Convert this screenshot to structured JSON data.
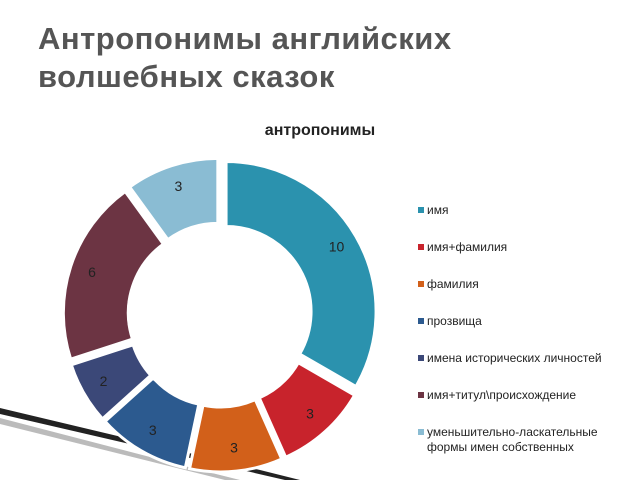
{
  "slide": {
    "title": "Антропонимы английских волшебных сказок"
  },
  "chart_data": {
    "type": "donut",
    "title": "антропонимы",
    "categories": [
      "имя",
      "имя+фамилия",
      "фамилия",
      "прозвища",
      "имена исторических личностей",
      "имя+титул\\происхождение",
      "уменьшительно-ласкательные формы имен собственных"
    ],
    "values": [
      10,
      3,
      3,
      3,
      2,
      6,
      3
    ],
    "colors": [
      "#2b92ae",
      "#c8232c",
      "#d2601a",
      "#2c5a8f",
      "#3b4878",
      "#6c3443",
      "#8abcd3"
    ],
    "legend": "right"
  }
}
